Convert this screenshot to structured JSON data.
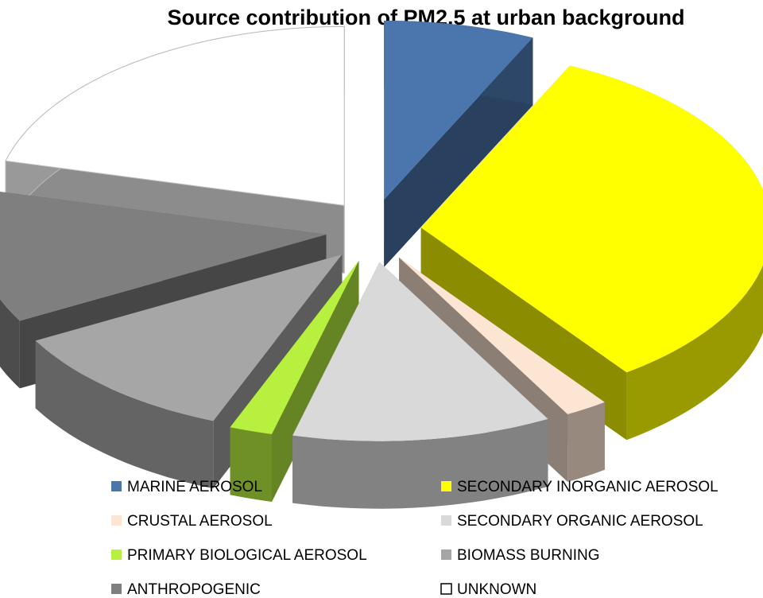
{
  "chart_data": {
    "type": "pie3d",
    "title": "Source contribution of PM2.5 at urban background",
    "categories": [
      "MARINE AEROSOL",
      "SECONDARY INORGANIC AEROSOL",
      "CRUSTAL AEROSOL",
      "SECONDARY ORGANIC AEROSOL",
      "PRIMARY BIOLOGICAL  AEROSOL",
      "BIOMASS BURNING",
      "ANTHROPOGENIC",
      "UNKNOWN"
    ],
    "values": [
      7,
      33,
      2,
      12,
      2,
      11,
      12,
      21
    ],
    "colors": [
      "#4a76ad",
      "#ffff00",
      "#fde5d3",
      "#d9d9d9",
      "#b8f040",
      "#a6a6a6",
      "#7f7f7f",
      "#ffffff"
    ],
    "legend": "bottom"
  }
}
